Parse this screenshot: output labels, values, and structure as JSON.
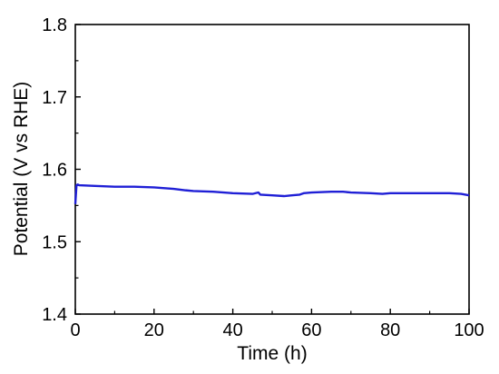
{
  "chart_data": {
    "type": "line",
    "title": "",
    "xlabel": "Time (h)",
    "ylabel": "Potential (V vs RHE)",
    "xlim": [
      0,
      100
    ],
    "ylim": [
      1.4,
      1.8
    ],
    "x_ticks": [
      0,
      20,
      40,
      60,
      80,
      100
    ],
    "y_ticks": [
      1.4,
      1.5,
      1.6,
      1.7,
      1.8
    ],
    "x_tick_labels": [
      "0",
      "20",
      "40",
      "60",
      "80",
      "100"
    ],
    "y_tick_labels": [
      "1.4",
      "1.5",
      "1.6",
      "1.7",
      "1.8"
    ],
    "grid": false,
    "legend": "none",
    "series_color": "#1f1fd6",
    "series": [
      {
        "x": [
          0,
          0.3,
          0.6,
          1,
          5,
          10,
          15,
          20,
          25,
          28,
          30,
          35,
          40,
          45,
          46.5,
          47,
          50,
          53,
          55,
          57,
          58,
          60,
          65,
          68,
          70,
          75,
          78,
          80,
          85,
          90,
          95,
          98,
          100
        ],
        "y": [
          1.552,
          1.578,
          1.579,
          1.578,
          1.577,
          1.576,
          1.576,
          1.575,
          1.573,
          1.571,
          1.57,
          1.569,
          1.567,
          1.566,
          1.568,
          1.565,
          1.564,
          1.563,
          1.564,
          1.565,
          1.567,
          1.568,
          1.569,
          1.569,
          1.568,
          1.567,
          1.566,
          1.567,
          1.567,
          1.567,
          1.567,
          1.566,
          1.564
        ]
      }
    ]
  }
}
